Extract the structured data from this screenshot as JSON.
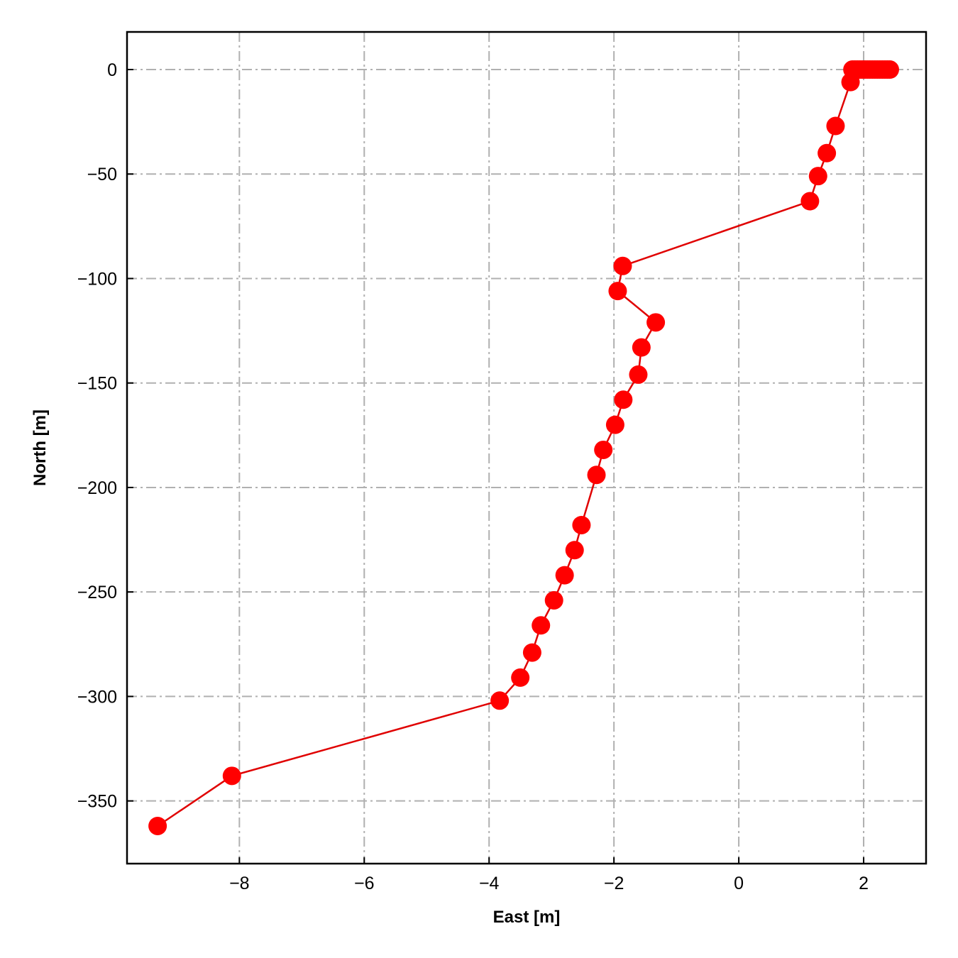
{
  "chart_data": {
    "type": "line",
    "title": "",
    "xlabel": "East [m]",
    "ylabel": "North [m]",
    "xlim": [
      -9.8,
      3.0
    ],
    "ylim": [
      -380,
      18
    ],
    "xticks": [
      -8,
      -6,
      -4,
      -2,
      0,
      2
    ],
    "yticks": [
      0,
      -50,
      -100,
      -150,
      -200,
      -250,
      -300,
      -350
    ],
    "xtick_labels": [
      "−8",
      "−6",
      "−4",
      "−2",
      "0",
      "2"
    ],
    "ytick_labels": [
      "0",
      "−50",
      "−100",
      "−150",
      "−200",
      "−250",
      "−300",
      "−350"
    ],
    "grid": true,
    "colors": {
      "series": "#ff0000",
      "line": "#e00000",
      "grid": "#b0b0b0"
    },
    "series": [
      {
        "x": [
          2.42,
          2.38,
          2.34,
          2.3,
          2.26,
          2.22,
          2.18,
          2.14,
          2.1,
          2.06,
          2.02,
          1.98,
          1.94,
          1.9,
          1.86,
          1.82,
          1.79,
          1.55,
          1.41,
          1.27,
          1.14,
          -1.86,
          -1.94,
          -1.33,
          -1.56,
          -1.61,
          -1.85,
          -1.98,
          -2.17,
          -2.28,
          -2.52,
          -2.63,
          -2.79,
          -2.96,
          -3.17,
          -3.31,
          -3.5,
          -3.83,
          -8.12,
          -9.31
        ],
        "y": [
          0,
          0,
          0,
          0,
          0,
          0,
          0,
          0,
          0,
          0,
          0,
          0,
          0,
          0,
          0,
          0,
          -6,
          -27,
          -40,
          -51,
          -63,
          -94,
          -106,
          -121,
          -133,
          -146,
          -158,
          -170,
          -182,
          -194,
          -218,
          -230,
          -242,
          -254,
          -266,
          -279,
          -291,
          -302,
          -338,
          -362
        ]
      }
    ]
  }
}
